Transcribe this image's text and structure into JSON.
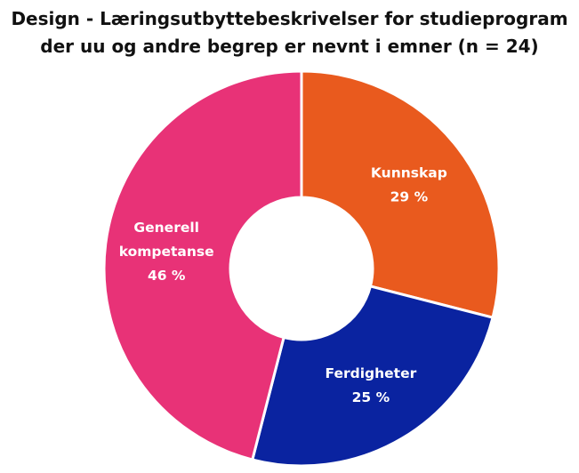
{
  "chart_data": {
    "type": "pie",
    "donut": true,
    "title_lines": [
      "Design - Læringsutbyttebeskrivelser for studieprogram",
      "der uu og andre begrep er nevnt i emner (n = 24)"
    ],
    "slices": [
      {
        "label_lines": [
          "Kunnskap"
        ],
        "value": 29,
        "value_label": "29 %",
        "color": "#E95A1E"
      },
      {
        "label_lines": [
          "Ferdigheter"
        ],
        "value": 25,
        "value_label": "25 %",
        "color": "#0A23A0"
      },
      {
        "label_lines": [
          "Generell",
          "kompetanse"
        ],
        "value": 46,
        "value_label": "46 %",
        "color": "#E83277"
      }
    ],
    "start": "top",
    "direction": "clockwise",
    "legend": "none",
    "label_position": "inside"
  }
}
